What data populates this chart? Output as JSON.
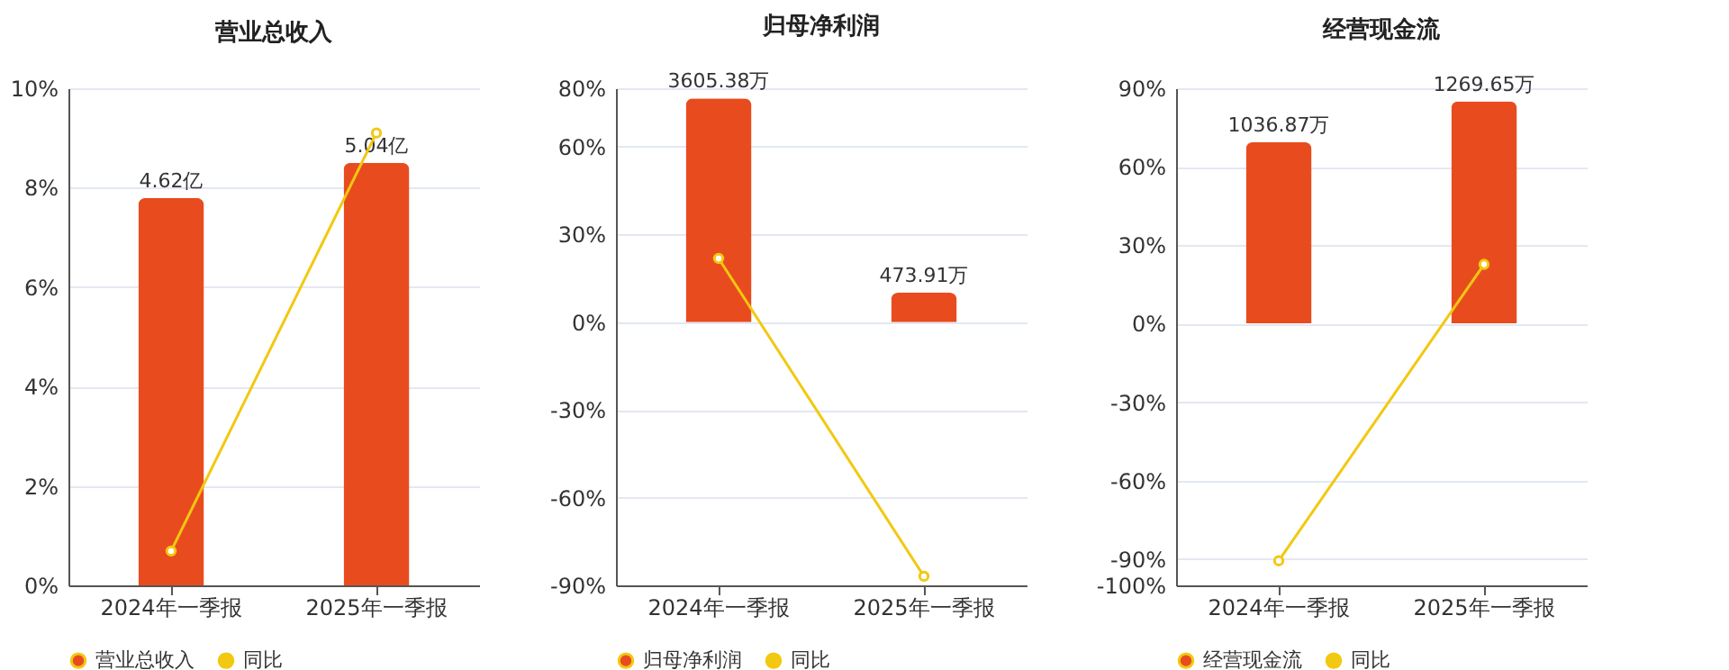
{
  "chart_data": [
    {
      "type": "bar",
      "title": "营业总收入",
      "categories": [
        "2024年一季报",
        "2025年一季报"
      ],
      "series": [
        {
          "name": "营业总收入",
          "axis": "y2",
          "color": "#e84c1e",
          "values": [
            4.62,
            5.04
          ],
          "value_labels": [
            "4.62亿",
            "5.04亿"
          ]
        },
        {
          "name": "同比",
          "type": "line",
          "color": "#f2c811",
          "values": [
            0.69,
            9.1
          ]
        }
      ],
      "ylim": [
        0,
        10
      ],
      "yticks": [
        {
          "value": 0,
          "label": "0%"
        },
        {
          "value": 2,
          "label": "2%"
        },
        {
          "value": 4,
          "label": "4%"
        },
        {
          "value": 6,
          "label": "6%"
        },
        {
          "value": 8,
          "label": "8%"
        },
        {
          "value": 10,
          "label": "10%"
        }
      ],
      "y2lim": [
        0,
        5.93
      ],
      "grid": "y",
      "legend": "bottom",
      "marker": "circle"
    },
    {
      "type": "bar",
      "title": "归母净利润",
      "categories": [
        "2024年一季报",
        "2025年一季报"
      ],
      "series": [
        {
          "name": "归母净利润",
          "axis": "y2",
          "color": "#e84c1e",
          "values": [
            3605.38,
            473.91
          ],
          "value_labels": [
            "3605.38万",
            "473.91万"
          ]
        },
        {
          "name": "同比",
          "type": "line",
          "color": "#f2c811",
          "values": [
            21.8,
            -86.9
          ]
        }
      ],
      "ylim": [
        -90,
        80
      ],
      "yticks": [
        {
          "value": -90,
          "label": "-90%"
        },
        {
          "value": -60,
          "label": "-60%"
        },
        {
          "value": -30,
          "label": "-30%"
        },
        {
          "value": 0,
          "label": "0%"
        },
        {
          "value": 30,
          "label": "30%"
        },
        {
          "value": 60,
          "label": "60%"
        },
        {
          "value": 80,
          "label": "80%"
        }
      ],
      "y2lim": [
        -4245,
        3770
      ],
      "grid": "y",
      "legend": "bottom",
      "marker": "circle"
    },
    {
      "type": "bar",
      "title": "经营现金流",
      "categories": [
        "2024年一季报",
        "2025年一季报"
      ],
      "series": [
        {
          "name": "经营现金流",
          "axis": "y2",
          "color": "#e84c1e",
          "values": [
            1036.87,
            1269.65
          ],
          "value_labels": [
            "1036.87万",
            "1269.65万"
          ]
        },
        {
          "name": "同比",
          "type": "line",
          "color": "#f2c811",
          "values": [
            -90.6,
            22.7
          ]
        }
      ],
      "ylim": [
        -100,
        90
      ],
      "yticks": [
        {
          "value": -100,
          "label": "-100%"
        },
        {
          "value": -90,
          "label": "-90%"
        },
        {
          "value": -60,
          "label": "-60%"
        },
        {
          "value": -30,
          "label": "-30%"
        },
        {
          "value": 0,
          "label": "0%"
        },
        {
          "value": 30,
          "label": "30%"
        },
        {
          "value": 60,
          "label": "60%"
        },
        {
          "value": 90,
          "label": "90%"
        }
      ],
      "y2lim": [
        -1499,
        1345
      ],
      "grid": "y",
      "legend": "bottom",
      "marker": "circle"
    }
  ]
}
